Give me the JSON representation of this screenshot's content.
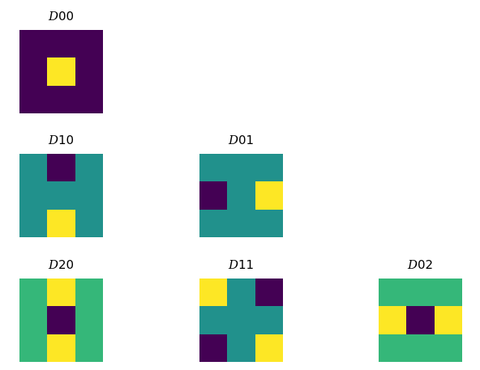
{
  "colors": {
    "0": "#440154",
    "0.5": "#21918c",
    "0.75": "#35b779",
    "1": "#fde725"
  },
  "panels": [
    {
      "key": "D00",
      "title_prefix": "D",
      "title_suffix": "00",
      "values": [
        [
          0,
          0,
          0
        ],
        [
          0,
          1,
          0
        ],
        [
          0,
          0,
          0
        ]
      ]
    },
    {
      "key": "D10",
      "title_prefix": "D",
      "title_suffix": "10",
      "values": [
        [
          0.5,
          0,
          0.5
        ],
        [
          0.5,
          0.5,
          0.5
        ],
        [
          0.5,
          1,
          0.5
        ]
      ]
    },
    {
      "key": "D01",
      "title_prefix": "D",
      "title_suffix": "01",
      "values": [
        [
          0.5,
          0.5,
          0.5
        ],
        [
          0,
          0.5,
          1
        ],
        [
          0.5,
          0.5,
          0.5
        ]
      ]
    },
    {
      "key": "D20",
      "title_prefix": "D",
      "title_suffix": "20",
      "values": [
        [
          0.75,
          1,
          0.75
        ],
        [
          0.75,
          0,
          0.75
        ],
        [
          0.75,
          1,
          0.75
        ]
      ]
    },
    {
      "key": "D11",
      "title_prefix": "D",
      "title_suffix": "11",
      "values": [
        [
          1,
          0.5,
          0
        ],
        [
          0.5,
          0.5,
          0.5
        ],
        [
          0,
          0.5,
          1
        ]
      ]
    },
    {
      "key": "D02",
      "title_prefix": "D",
      "title_suffix": "02",
      "values": [
        [
          0.75,
          0.75,
          0.75
        ],
        [
          1,
          0,
          1
        ],
        [
          0.75,
          0.75,
          0.75
        ]
      ]
    }
  ]
}
